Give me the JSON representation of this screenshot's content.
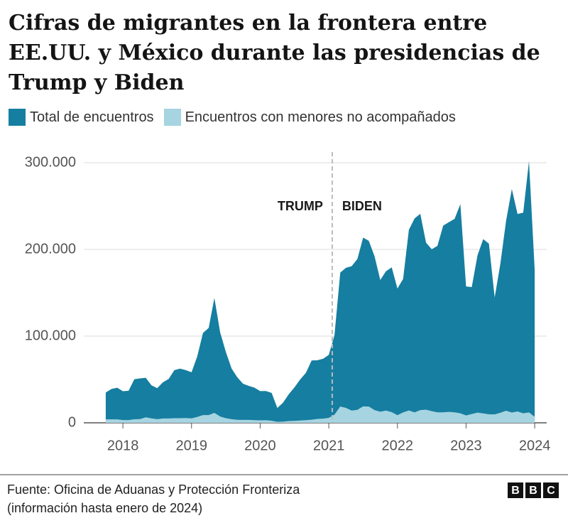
{
  "chart_data": {
    "type": "area",
    "title": "Cifras de migrantes en la frontera entre EE.UU. y México durante las presidencias de Trump y Biden",
    "x": [
      2017.75,
      2017.833,
      2017.917,
      2018,
      2018.083,
      2018.167,
      2018.25,
      2018.333,
      2018.417,
      2018.5,
      2018.583,
      2018.667,
      2018.75,
      2018.833,
      2018.917,
      2019,
      2019.083,
      2019.167,
      2019.25,
      2019.333,
      2019.417,
      2019.5,
      2019.583,
      2019.667,
      2019.75,
      2019.833,
      2019.917,
      2020,
      2020.083,
      2020.167,
      2020.25,
      2020.333,
      2020.417,
      2020.5,
      2020.583,
      2020.667,
      2020.75,
      2020.833,
      2020.917,
      2021,
      2021.083,
      2021.167,
      2021.25,
      2021.333,
      2021.417,
      2021.5,
      2021.583,
      2021.667,
      2021.75,
      2021.833,
      2021.917,
      2022,
      2022.083,
      2022.167,
      2022.25,
      2022.333,
      2022.417,
      2022.5,
      2022.583,
      2022.667,
      2022.75,
      2022.833,
      2022.917,
      2023,
      2023.083,
      2023.167,
      2023.25,
      2023.333,
      2023.417,
      2023.5,
      2023.583,
      2023.667,
      2023.75,
      2023.833,
      2023.917,
      2024
    ],
    "series": [
      {
        "name": "Total de encuentros",
        "color": "#167ea0",
        "values": [
          34900,
          39000,
          40500,
          36500,
          37000,
          50300,
          51200,
          51900,
          43200,
          40000,
          46700,
          50600,
          60800,
          62500,
          60800,
          58300,
          76500,
          103700,
          109400,
          144100,
          104300,
          81800,
          62700,
          52500,
          45100,
          42600,
          40600,
          36600,
          36700,
          34500,
          17100,
          23200,
          33000,
          40900,
          50000,
          57700,
          71900,
          72100,
          73900,
          78400,
          101100,
          173300,
          178800,
          180600,
          189000,
          213600,
          209900,
          192000,
          164800,
          174800,
          179300,
          154900,
          166000,
          222600,
          235800,
          241100,
          207800,
          200200,
          204100,
          227500,
          231500,
          235200,
          252300,
          157300,
          156600,
          193200,
          211900,
          206700,
          144600,
          183500,
          232900,
          269700,
          240900,
          242400,
          301900,
          176200
        ]
      },
      {
        "name": "Encuentros con menores no acompañados",
        "color": "#a6d4e1",
        "values": [
          4000,
          4000,
          4000,
          3200,
          3200,
          4100,
          4300,
          6400,
          5100,
          4200,
          5000,
          5000,
          5300,
          5300,
          5500,
          5100,
          6800,
          8900,
          8900,
          11500,
          7300,
          5300,
          4200,
          3500,
          3400,
          3400,
          3100,
          2900,
          3000,
          2400,
          1100,
          1300,
          2000,
          2300,
          2700,
          3100,
          3600,
          4500,
          4800,
          5700,
          9400,
          18900,
          17200,
          14100,
          15000,
          19000,
          18700,
          14700,
          12800,
          14100,
          12300,
          8800,
          12000,
          14200,
          12000,
          14700,
          15200,
          13400,
          12100,
          12100,
          12600,
          12100,
          11000,
          8500,
          10100,
          11800,
          10900,
          9800,
          9700,
          11600,
          13900,
          11900,
          13100,
          11000,
          12000,
          7000
        ]
      }
    ],
    "xlim": [
      2017.43,
      2024.175
    ],
    "xticks": [
      2018,
      2019,
      2020,
      2021,
      2022,
      2023,
      2024
    ],
    "ylim": [
      0,
      300000
    ],
    "yticks": [
      0,
      {
        "value": 100000,
        "label": "100.000"
      },
      {
        "value": 200000,
        "label": "200.000"
      },
      {
        "value": 300000,
        "label": "300.000"
      }
    ],
    "grid": true,
    "vline": 2021.05,
    "annotations": [
      "TRUMP",
      "BIDEN"
    ],
    "source": [
      "Fuente: Oficina de Aduanas y Protección Fronteriza",
      "(información hasta enero de 2024)"
    ],
    "logo": [
      "B",
      "B",
      "C"
    ]
  }
}
